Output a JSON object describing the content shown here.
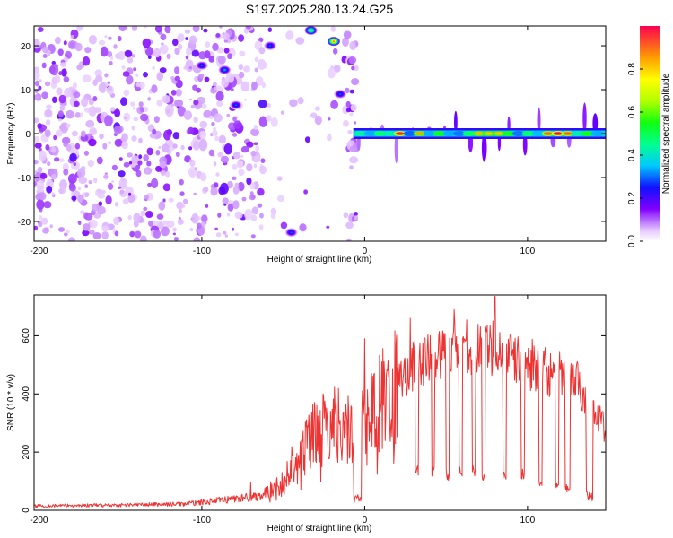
{
  "figure_title": "S197.2025.280.13.24.G25",
  "chart_data": [
    {
      "type": "heatmap",
      "title": "S197.2025.280.13.24.G25",
      "xlabel": "Height of straight line (km)",
      "ylabel": "Frequency (Hz)",
      "xlim": [
        -203,
        148
      ],
      "ylim": [
        -24.5,
        24.5
      ],
      "xticks": [
        -200,
        -100,
        0,
        100
      ],
      "yticks": [
        -20,
        -10,
        0,
        10,
        20
      ],
      "colorbar": {
        "label": "Normalized spectral amplitude",
        "range": [
          0.0,
          1.0
        ],
        "ticks": [
          0.0,
          0.2,
          0.4,
          0.6,
          0.8
        ]
      },
      "features": [
        {
          "name": "noise-region",
          "x_range": [
            -203,
            -5
          ],
          "freq_range": [
            -24.5,
            24.5
          ],
          "amplitude": 0.15
        },
        {
          "name": "carrier-line",
          "x_range": [
            -7,
            148
          ],
          "freq": 0.0,
          "peak_amplitude": 1.0
        },
        {
          "name": "strong-blob",
          "x": -100,
          "freq": 15.5,
          "amplitude": 0.3
        },
        {
          "name": "strong-blob",
          "x": -86,
          "freq": 14.5,
          "amplitude": 0.35
        },
        {
          "name": "strong-blob",
          "x": -79,
          "freq": 6.5,
          "amplitude": 0.3
        },
        {
          "name": "strong-blob",
          "x": -58,
          "freq": 20.0,
          "amplitude": 0.3
        },
        {
          "name": "strong-blob",
          "x": -33,
          "freq": 23.5,
          "amplitude": 0.6
        },
        {
          "name": "strong-blob",
          "x": -19,
          "freq": 21.0,
          "amplitude": 0.9
        },
        {
          "name": "strong-blob",
          "x": -15,
          "freq": 9.0,
          "amplitude": 0.3
        },
        {
          "name": "strong-blob",
          "x": -45,
          "freq": -22.5,
          "amplitude": 0.3
        }
      ]
    },
    {
      "type": "line",
      "xlabel": "Height of straight line (km)",
      "ylabel": "SNR (10 * v/v)",
      "xlim": [
        -203,
        148
      ],
      "ylim": [
        0,
        740
      ],
      "xticks": [
        -200,
        -100,
        0,
        100
      ],
      "yticks": [
        0,
        200,
        400,
        600
      ],
      "series": [
        {
          "name": "SNR",
          "color": "#ee3333",
          "profile": {
            "x": [
              -203,
              -150,
              -110,
              -95,
              -80,
              -70,
              -65,
              -60,
              -50,
              -45,
              -40,
              -35,
              -30,
              -25,
              -20,
              -15,
              -10,
              -5,
              0,
              5,
              10,
              15,
              20,
              25,
              30,
              35,
              40,
              45,
              50,
              55,
              60,
              65,
              70,
              75,
              80,
              85,
              90,
              95,
              100,
              105,
              110,
              115,
              120,
              125,
              130,
              135,
              140,
              145,
              148
            ],
            "y": [
              15,
              18,
              22,
              30,
              40,
              45,
              50,
              60,
              100,
              160,
              200,
              240,
              260,
              280,
              300,
              300,
              280,
              280,
              320,
              350,
              380,
              400,
              440,
              470,
              500,
              520,
              520,
              540,
              550,
              560,
              580,
              570,
              550,
              540,
              580,
              520,
              520,
              510,
              500,
              500,
              480,
              470,
              460,
              450,
              440,
              400,
              350,
              300,
              280
            ]
          },
          "dropouts": [
            {
              "x": [
                -7,
                -2
              ],
              "y": 40
            },
            {
              "x": [
                31,
                33
              ],
              "y": 130
            },
            {
              "x": [
                41,
                43
              ],
              "y": 130
            },
            {
              "x": [
                50,
                52
              ],
              "y": 125
            },
            {
              "x": [
                58,
                60
              ],
              "y": 130
            },
            {
              "x": [
                66,
                68
              ],
              "y": 130
            },
            {
              "x": [
                72,
                74
              ],
              "y": 120
            },
            {
              "x": [
                85,
                87
              ],
              "y": 125
            },
            {
              "x": [
                96,
                98
              ],
              "y": 120
            },
            {
              "x": [
                107,
                109
              ],
              "y": 85
            },
            {
              "x": [
                117,
                119
              ],
              "y": 80
            },
            {
              "x": [
                123,
                126
              ],
              "y": 75
            },
            {
              "x": [
                136,
                140
              ],
              "y": 50
            }
          ],
          "spikes": [
            {
              "x": 80,
              "y": 735
            },
            {
              "x": 55,
              "y": 690
            },
            {
              "x": 28,
              "y": 660
            },
            {
              "x": 0,
              "y": 590
            },
            {
              "x": -70,
              "y": 95
            }
          ]
        }
      ]
    }
  ]
}
